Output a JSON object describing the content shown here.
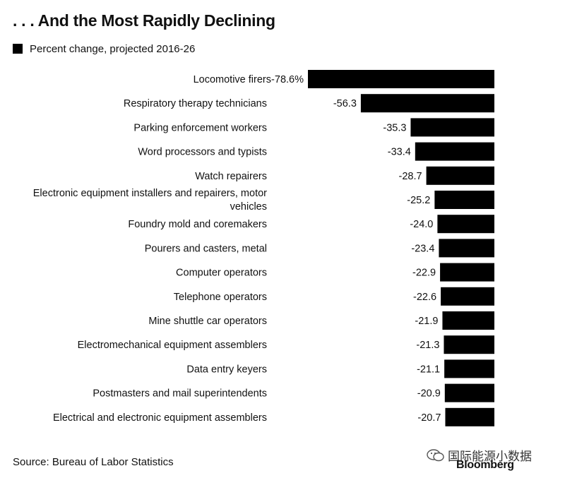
{
  "header": {
    "title": ". . . And the Most Rapidly Declining"
  },
  "legend": {
    "label": "Percent change, projected 2016-26",
    "color": "#000000"
  },
  "footer": {
    "source": "Source: Bureau of Labor Statistics",
    "watermark": "国际能源小数据",
    "brand": "Bloomberg"
  },
  "chart_data": {
    "type": "bar",
    "orientation": "horizontal",
    "categories": [
      "Locomotive firers",
      "Respiratory therapy technicians",
      "Parking enforcement workers",
      "Word processors and typists",
      "Watch repairers",
      "Electronic equipment installers and repairers, motor vehicles",
      "Foundry mold and coremakers",
      "Pourers and casters, metal",
      "Computer operators",
      "Telephone operators",
      "Mine shuttle car operators",
      "Electromechanical equipment assemblers",
      "Data entry keyers",
      "Postmasters and mail superintendents",
      "Electrical and electronic equipment assemblers"
    ],
    "series": [
      {
        "name": "Percent change, projected 2016-26",
        "values": [
          -78.6,
          -56.3,
          -35.3,
          -33.4,
          -28.7,
          -25.2,
          -24.0,
          -23.4,
          -22.9,
          -22.6,
          -21.9,
          -21.3,
          -21.1,
          -20.9,
          -20.7
        ]
      }
    ],
    "data_labels": [
      "-78.6%",
      "-56.3",
      "-35.3",
      "-33.4",
      "-28.7",
      "-25.2",
      "-24.0",
      "-23.4",
      "-22.9",
      "-22.6",
      "-21.9",
      "-21.3",
      "-21.1",
      "-20.9",
      "-20.7"
    ],
    "title": ". . . And the Most Rapidly Declining",
    "xlabel": "",
    "ylabel": "",
    "xlim": [
      -78.6,
      0
    ],
    "grid": false,
    "legend_position": "top-left",
    "bar_color": "#000000"
  }
}
